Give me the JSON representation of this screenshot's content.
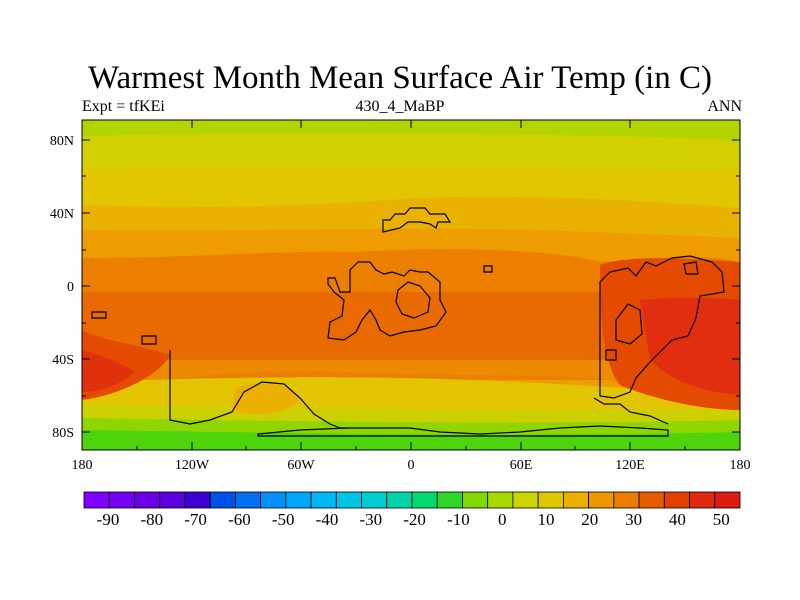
{
  "title": "Warmest Month Mean Surface Air Temp (in C)",
  "subtitle_left": "Expt = tfKEi",
  "subtitle_center": "430_4_MaBP",
  "subtitle_right": "ANN",
  "map": {
    "lat_ticks": [
      "80N",
      "40N",
      "0",
      "40S",
      "80S"
    ],
    "lon_ticks": [
      "180",
      "120W",
      "60W",
      "0",
      "60E",
      "120E",
      "180"
    ]
  },
  "colorbar": {
    "labels": [
      "-90",
      "-80",
      "-70",
      "-60",
      "-50",
      "-40",
      "-30",
      "-20",
      "-10",
      "0",
      "10",
      "20",
      "30",
      "40",
      "50"
    ],
    "colors": [
      "#7f00ff",
      "#7400f0",
      "#6a00e6",
      "#5a00dc",
      "#3d00d2",
      "#0052e6",
      "#0070f0",
      "#0092f8",
      "#00a6fa",
      "#00b6f4",
      "#00c4e8",
      "#00ccd0",
      "#00d4a8",
      "#00da70",
      "#2ed62a",
      "#80d800",
      "#a8da00",
      "#cbd400",
      "#e0c800",
      "#ecb000",
      "#f09600",
      "#ec7c00",
      "#e85c00",
      "#e43e00",
      "#e02a10",
      "#dc1a10"
    ]
  }
}
